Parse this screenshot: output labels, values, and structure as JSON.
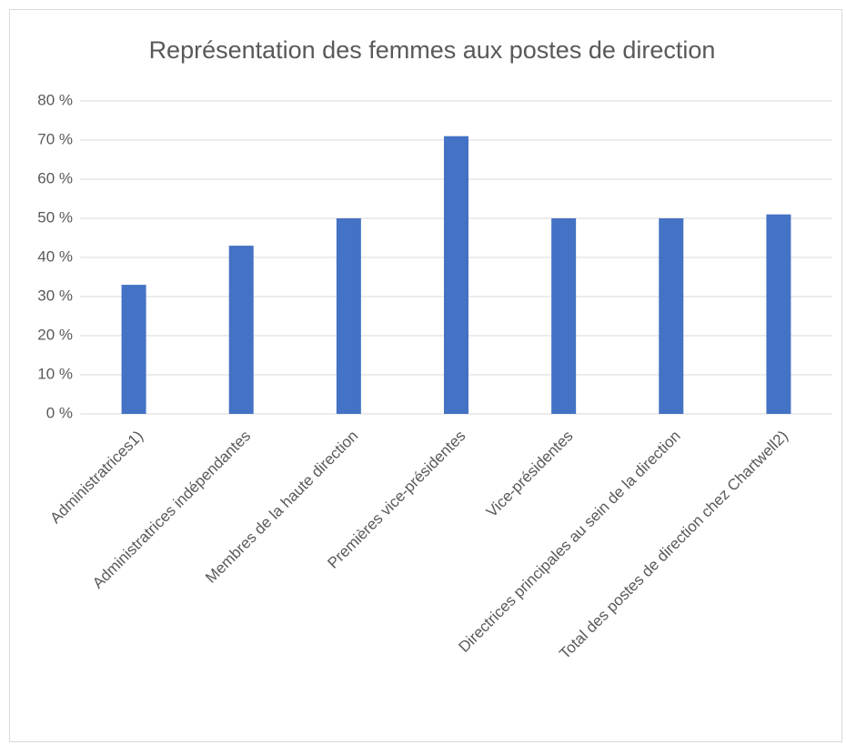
{
  "chart_data": {
    "type": "bar",
    "title": "Représentation des femmes aux postes de direction",
    "categories": [
      "Administratrices1)",
      "Administratrices indépendantes",
      "Membres de la haute direction",
      "Premières vice-présidentes",
      "Vice-présidentes",
      "Directrices principales au sein de la direction",
      "Total des postes de direction chez Chartwell2)"
    ],
    "values": [
      33,
      43,
      50,
      71,
      50,
      50,
      51
    ],
    "color": "#4472c4",
    "ylim": [
      0,
      80
    ],
    "yticks": [
      {
        "value": 0,
        "label": "0 %"
      },
      {
        "value": 10,
        "label": "10 %"
      },
      {
        "value": 20,
        "label": "20 %"
      },
      {
        "value": 30,
        "label": "30 %"
      },
      {
        "value": 40,
        "label": "40 %"
      },
      {
        "value": 50,
        "label": "50 %"
      },
      {
        "value": 60,
        "label": "60 %"
      },
      {
        "value": 70,
        "label": "70 %"
      },
      {
        "value": 80,
        "label": "80 %"
      }
    ],
    "grid": true
  }
}
